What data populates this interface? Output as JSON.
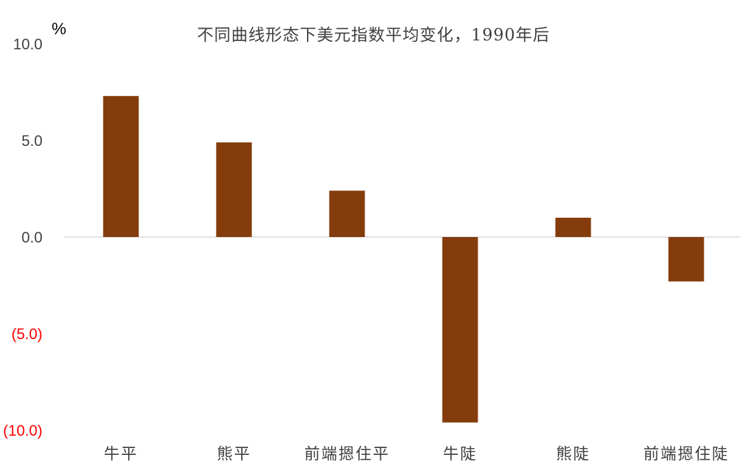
{
  "chart_data": {
    "type": "bar",
    "title": "不同曲线形态下美元指数平均变化，1990年后",
    "unit": "%",
    "categories": [
      "牛平",
      "熊平",
      "前端摁住平",
      "牛陡",
      "熊陡",
      "前端摁住陡"
    ],
    "values": [
      7.3,
      4.9,
      2.4,
      -9.6,
      1.0,
      -2.3
    ],
    "ylim": [
      -10,
      10
    ],
    "yticks": [
      10,
      5,
      0,
      -5,
      -10
    ],
    "ytick_labels": [
      "10.0",
      "5.0",
      "0.0",
      "(5.0)",
      "(10.0)"
    ],
    "bar_color": "#843c0c",
    "positive_tick_color": "#404040",
    "negative_tick_color": "#ff0000",
    "grid": false,
    "legend": "none"
  }
}
